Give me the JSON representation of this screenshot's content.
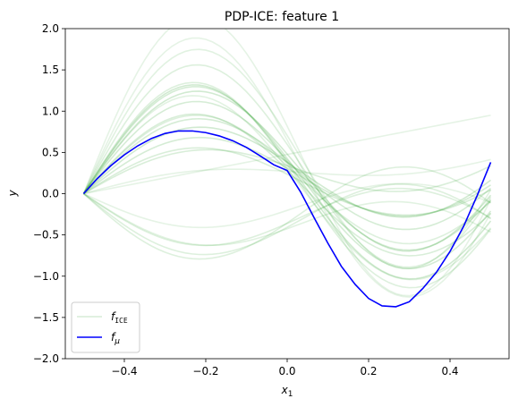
{
  "chart_data": {
    "type": "line",
    "title": "PDP-ICE: feature 1",
    "xlabel": "x",
    "xlabel_sub": "1",
    "ylabel": "y",
    "xlim": [
      -0.545,
      0.545
    ],
    "ylim": [
      -2.0,
      2.0
    ],
    "xticks": [
      -0.4,
      -0.2,
      0.0,
      0.2,
      0.4
    ],
    "xtick_labels": [
      "−0.4",
      "−0.2",
      "0.0",
      "0.2",
      "0.4"
    ],
    "yticks": [
      -2.0,
      -1.5,
      -1.0,
      -0.5,
      0.0,
      0.5,
      1.0,
      1.5,
      2.0
    ],
    "ytick_labels": [
      "−2.0",
      "−1.5",
      "−1.0",
      "−0.5",
      "0.0",
      "0.5",
      "1.0",
      "1.5",
      "2.0"
    ],
    "colors": {
      "ice": "#2ca02c",
      "mean": "#0000ff"
    },
    "legend": {
      "placement": "lower-left",
      "items": [
        {
          "label_main": "f",
          "label_sub": "ICE",
          "style": "ice"
        },
        {
          "label_main": "f",
          "label_sub": "μ",
          "style": "mean"
        }
      ]
    },
    "mean_series": {
      "name": "f_mu",
      "x": [
        -0.5,
        -0.467,
        -0.433,
        -0.4,
        -0.367,
        -0.333,
        -0.3,
        -0.267,
        -0.233,
        -0.2,
        -0.167,
        -0.133,
        -0.1,
        -0.067,
        -0.033,
        0.0,
        0.033,
        0.067,
        0.1,
        0.133,
        0.167,
        0.2,
        0.233,
        0.267,
        0.3,
        0.333,
        0.367,
        0.4,
        0.433,
        0.467,
        0.5
      ],
      "y": [
        0.0,
        0.18,
        0.34,
        0.47,
        0.58,
        0.67,
        0.73,
        0.76,
        0.76,
        0.74,
        0.7,
        0.64,
        0.56,
        0.46,
        0.35,
        0.28,
        0.02,
        -0.3,
        -0.6,
        -0.88,
        -1.1,
        -1.27,
        -1.36,
        -1.37,
        -1.31,
        -1.15,
        -0.95,
        -0.7,
        -0.4,
        -0.02,
        0.38
      ]
    },
    "ice_series": [
      {
        "name": "ice-01",
        "amp": 1.45,
        "lin": 1.1,
        "bias": 0.0,
        "alpha": 0.16
      },
      {
        "name": "ice-02",
        "amp": 1.3,
        "lin": 0.4,
        "bias": 0.0,
        "alpha": 0.22
      },
      {
        "name": "ice-03",
        "amp": 1.25,
        "lin": 0.6,
        "bias": 0.0,
        "alpha": 0.2
      },
      {
        "name": "ice-04",
        "amp": 1.15,
        "lin": 0.9,
        "bias": 0.0,
        "alpha": 0.22
      },
      {
        "name": "ice-05",
        "amp": 1.05,
        "lin": 0.7,
        "bias": 0.0,
        "alpha": 0.2
      },
      {
        "name": "ice-06",
        "amp": 0.95,
        "lin": 0.3,
        "bias": 0.0,
        "alpha": 0.18
      },
      {
        "name": "ice-07",
        "amp": 0.82,
        "lin": 0.8,
        "bias": 0.0,
        "alpha": 0.2
      },
      {
        "name": "ice-08",
        "amp": 0.7,
        "lin": 0.9,
        "bias": 0.0,
        "alpha": 0.22
      },
      {
        "name": "ice-09",
        "amp": 0.6,
        "lin": 0.7,
        "bias": 0.0,
        "alpha": 0.2
      },
      {
        "name": "ice-10",
        "amp": 0.5,
        "lin": 0.5,
        "bias": 0.0,
        "alpha": 0.18
      },
      {
        "name": "ice-11",
        "amp": 0.4,
        "lin": 1.0,
        "bias": 0.0,
        "alpha": 0.18
      },
      {
        "name": "ice-12",
        "amp": 1.6,
        "lin": 1.4,
        "bias": 0.0,
        "alpha": 0.14
      },
      {
        "name": "ice-13",
        "amp": 1.8,
        "lin": 1.0,
        "bias": 0.0,
        "alpha": 0.12
      },
      {
        "name": "ice-14",
        "amp": 2.0,
        "lin": 1.5,
        "bias": 0.0,
        "alpha": 0.12
      },
      {
        "name": "ice-15",
        "amp": -0.5,
        "lin": -1.0,
        "bias": 0.0,
        "alpha": 0.16
      },
      {
        "name": "ice-16",
        "amp": -0.6,
        "lin": -1.1,
        "bias": 0.0,
        "alpha": 0.16
      },
      {
        "name": "ice-17",
        "amp": -0.7,
        "lin": -0.8,
        "bias": 0.0,
        "alpha": 0.16
      },
      {
        "name": "ice-18",
        "amp": -0.45,
        "lin": -1.3,
        "bias": 0.0,
        "alpha": 0.14
      },
      {
        "name": "ice-19",
        "amp": -0.35,
        "lin": -0.5,
        "bias": 0.0,
        "alpha": 0.12
      },
      {
        "name": "ice-20",
        "amp": 0.0,
        "lin": 1.9,
        "bias": 0.0,
        "alpha": 0.12
      },
      {
        "name": "ice-21",
        "amp": 0.15,
        "lin": 0.95,
        "bias": 0.0,
        "alpha": 0.12
      },
      {
        "name": "ice-22",
        "amp": 1.2,
        "lin": 0.15,
        "bias": 0.0,
        "alpha": 0.14
      },
      {
        "name": "ice-23",
        "amp": 0.9,
        "lin": 0.55,
        "bias": 0.0,
        "alpha": 0.16
      },
      {
        "name": "ice-24",
        "amp": 1.35,
        "lin": 0.25,
        "bias": 0.0,
        "alpha": 0.16
      }
    ]
  }
}
